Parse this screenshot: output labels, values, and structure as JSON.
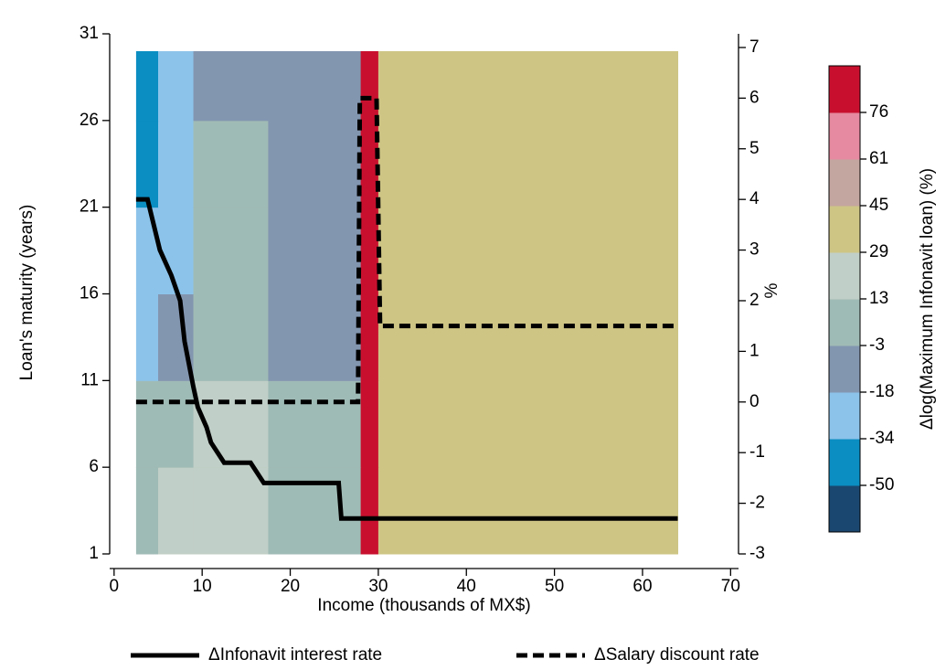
{
  "chart_data": {
    "type": "heatmap",
    "x_label": "Income (thousands of MX$)",
    "y_label": "Loan's maturity (years)",
    "y2_label": "%",
    "xlim": [
      -0.5,
      70.9
    ],
    "xticks": [
      0,
      10,
      20,
      30,
      40,
      50,
      60,
      70
    ],
    "ylim": [
      1,
      31
    ],
    "yticks": [
      1,
      6,
      11,
      16,
      21,
      26,
      31
    ],
    "y2lim": [
      -3,
      7.27
    ],
    "y2ticks": [
      -3,
      -2,
      -1,
      0,
      1,
      2,
      3,
      4,
      5,
      6,
      7
    ],
    "heatmap": {
      "x_edges": [
        2.5,
        5,
        9,
        17.5,
        28,
        30,
        64
      ],
      "y_edges": [
        1,
        6,
        11,
        16,
        21,
        26,
        30
      ],
      "values": [
        [
          5,
          20,
          20,
          5,
          85,
          37
        ],
        [
          5,
          5,
          20,
          5,
          85,
          37
        ],
        [
          -25,
          -10,
          5,
          -10,
          85,
          37
        ],
        [
          -25,
          -25,
          5,
          -10,
          85,
          37
        ],
        [
          -40,
          -25,
          5,
          -10,
          85,
          37
        ],
        [
          -40,
          -25,
          -10,
          -10,
          85,
          37
        ]
      ]
    },
    "colorbar": {
      "title": "Δlog(Maximum Infonavit loan) (%)",
      "levels": [
        -50,
        -34,
        -18,
        -3,
        13,
        29,
        45,
        61,
        76
      ],
      "colors": [
        "#1a476f",
        "#0b8ec2",
        "#8cc3ea",
        "#8396b0",
        "#9fbbb5",
        "#c0cfc7",
        "#cec585",
        "#c4a6a0",
        "#e58aa0",
        "#c8102e"
      ]
    },
    "series": [
      {
        "name": "ΔInfonavit interest rate",
        "color": "#000000",
        "style": "solid",
        "axis": "y2",
        "x": [
          2.5,
          3.8,
          4.5,
          5.2,
          6.5,
          7.5,
          8,
          9,
          9.5,
          10.5,
          11,
          12.5,
          15.5,
          17,
          25.5,
          25.8,
          64
        ],
        "values": [
          4,
          4,
          3.5,
          3,
          2.5,
          2,
          1.2,
          0.3,
          -0.1,
          -0.5,
          -0.8,
          -1.2,
          -1.2,
          -1.6,
          -1.6,
          -2.3,
          -2.3
        ]
      },
      {
        "name": "ΔSalary discount rate",
        "color": "#000000",
        "style": "dashed",
        "axis": "y2",
        "x": [
          2.5,
          27.7,
          27.9,
          29.8,
          30.2,
          64
        ],
        "values": [
          0,
          0,
          6,
          6,
          1.5,
          1.5
        ]
      }
    ]
  }
}
